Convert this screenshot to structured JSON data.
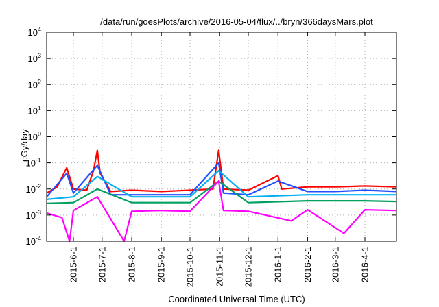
{
  "chart_data": {
    "type": "line",
    "title": "/data/run/goesPlots/archive/2016-05-04/flux/../bryn/366daysMars.plot",
    "xlabel": "Coordinated Universal Time (UTC)",
    "ylabel": "cGy/day",
    "yscale": "log",
    "ylim_exponents": [
      -4,
      4
    ],
    "ytick_base": "10",
    "ytick_exponents": [
      "-4",
      "-3",
      "-2",
      "-1",
      "0",
      "1",
      "2",
      "3",
      "4"
    ],
    "xlim": [
      "2015-05-04",
      "2016-05-04"
    ],
    "xtick_dates": [
      "2015-06-01",
      "2015-07-01",
      "2015-08-01",
      "2015-09-01",
      "2015-10-01",
      "2015-11-01",
      "2015-12-01",
      "2016-01-01",
      "2016-02-01",
      "2016-03-01",
      "2016-04-01"
    ],
    "xtick_labels": [
      "2015-6-1",
      "2015-7-1",
      "2015-8-1",
      "2015-9-1",
      "2015-10-1",
      "2015-11-1",
      "2015-12-1",
      "2016-1-1",
      "2016-2-1",
      "2016-3-1",
      "2016-4-1"
    ],
    "grid": true,
    "series_colors": [
      "#ff0000",
      "#1f4fff",
      "#00b0f0",
      "#00a060",
      "#ff00ff"
    ],
    "series": [
      {
        "color": "#ff0000",
        "points": [
          [
            "2015-05-04",
            0.007
          ],
          [
            "2015-05-15",
            0.012
          ],
          [
            "2015-05-25",
            0.065
          ],
          [
            "2015-06-01",
            0.01
          ],
          [
            "2015-06-15",
            0.009
          ],
          [
            "2015-06-22",
            0.05
          ],
          [
            "2015-06-26",
            0.3
          ],
          [
            "2015-06-29",
            0.04
          ],
          [
            "2015-07-10",
            0.008
          ],
          [
            "2015-08-01",
            0.009
          ],
          [
            "2015-09-01",
            0.008
          ],
          [
            "2015-10-01",
            0.009
          ],
          [
            "2015-10-25",
            0.01
          ],
          [
            "2015-10-31",
            0.3
          ],
          [
            "2015-11-05",
            0.01
          ],
          [
            "2015-12-01",
            0.009
          ],
          [
            "2016-01-01",
            0.032
          ],
          [
            "2016-01-05",
            0.01
          ],
          [
            "2016-02-01",
            0.012
          ],
          [
            "2016-03-01",
            0.012
          ],
          [
            "2016-04-01",
            0.013
          ],
          [
            "2016-05-04",
            0.012
          ]
        ]
      },
      {
        "color": "#1f4fff",
        "points": [
          [
            "2015-05-04",
            0.005
          ],
          [
            "2015-05-25",
            0.04
          ],
          [
            "2015-06-01",
            0.007
          ],
          [
            "2015-06-26",
            0.08
          ],
          [
            "2015-07-10",
            0.006
          ],
          [
            "2015-08-01",
            0.006
          ],
          [
            "2015-09-01",
            0.006
          ],
          [
            "2015-10-01",
            0.006
          ],
          [
            "2015-10-31",
            0.1
          ],
          [
            "2015-11-05",
            0.007
          ],
          [
            "2015-12-01",
            0.006
          ],
          [
            "2016-01-01",
            0.02
          ],
          [
            "2016-02-01",
            0.008
          ],
          [
            "2016-03-01",
            0.008
          ],
          [
            "2016-04-01",
            0.009
          ],
          [
            "2016-05-04",
            0.008
          ]
        ]
      },
      {
        "color": "#00b0f0",
        "points": [
          [
            "2015-05-04",
            0.004
          ],
          [
            "2015-06-01",
            0.005
          ],
          [
            "2015-06-26",
            0.03
          ],
          [
            "2015-08-01",
            0.005
          ],
          [
            "2015-10-01",
            0.005
          ],
          [
            "2015-10-31",
            0.05
          ],
          [
            "2015-12-01",
            0.005
          ],
          [
            "2016-02-01",
            0.006
          ],
          [
            "2016-04-01",
            0.006
          ],
          [
            "2016-05-04",
            0.006
          ]
        ]
      },
      {
        "color": "#00a060",
        "points": [
          [
            "2015-05-04",
            0.0028
          ],
          [
            "2015-06-01",
            0.003
          ],
          [
            "2015-06-26",
            0.01
          ],
          [
            "2015-08-01",
            0.003
          ],
          [
            "2015-10-01",
            0.003
          ],
          [
            "2015-10-31",
            0.02
          ],
          [
            "2015-12-01",
            0.003
          ],
          [
            "2016-02-01",
            0.0035
          ],
          [
            "2016-04-01",
            0.0035
          ],
          [
            "2016-05-04",
            0.0033
          ]
        ]
      },
      {
        "color": "#ff00ff",
        "points": [
          [
            "2015-05-04",
            0.0012
          ],
          [
            "2015-05-20",
            0.0008
          ],
          [
            "2015-05-28",
            0.0001
          ],
          [
            "2015-06-01",
            0.0015
          ],
          [
            "2015-06-26",
            0.005
          ],
          [
            "2015-07-24",
            0.0001
          ],
          [
            "2015-08-01",
            0.0014
          ],
          [
            "2015-09-01",
            0.0015
          ],
          [
            "2015-10-01",
            0.0014
          ],
          [
            "2015-10-31",
            0.02
          ],
          [
            "2015-11-05",
            0.0015
          ],
          [
            "2015-12-01",
            0.0014
          ],
          [
            "2016-01-15",
            0.0006
          ],
          [
            "2016-02-01",
            0.0016
          ],
          [
            "2016-03-10",
            0.0002
          ],
          [
            "2016-04-01",
            0.0016
          ],
          [
            "2016-05-04",
            0.0015
          ]
        ]
      }
    ]
  }
}
